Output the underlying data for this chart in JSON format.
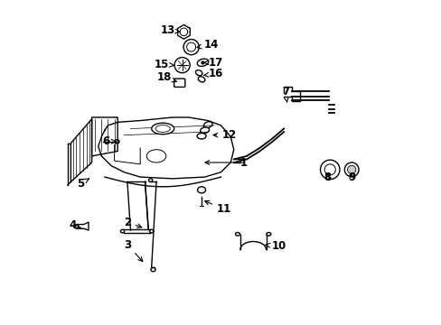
{
  "background_color": "#ffffff",
  "line_color": "#000000",
  "lw": 1.0,
  "labels": [
    [
      1,
      0.57,
      0.5,
      0.44,
      0.5
    ],
    [
      2,
      0.21,
      0.315,
      0.265,
      0.295
    ],
    [
      3,
      0.21,
      0.245,
      0.265,
      0.185
    ],
    [
      4,
      0.04,
      0.305,
      0.075,
      0.295
    ],
    [
      5,
      0.065,
      0.435,
      0.1,
      0.455
    ],
    [
      6,
      0.145,
      0.565,
      0.185,
      0.565
    ],
    [
      7,
      0.7,
      0.72,
      0.705,
      0.685
    ],
    [
      8,
      0.83,
      0.455,
      0.835,
      0.475
    ],
    [
      9,
      0.905,
      0.455,
      0.905,
      0.475
    ],
    [
      10,
      0.68,
      0.24,
      0.635,
      0.245
    ],
    [
      11,
      0.51,
      0.355,
      0.44,
      0.385
    ],
    [
      12,
      0.525,
      0.585,
      0.465,
      0.585
    ],
    [
      13,
      0.335,
      0.91,
      0.375,
      0.905
    ],
    [
      14,
      0.47,
      0.865,
      0.415,
      0.855
    ],
    [
      15,
      0.315,
      0.805,
      0.365,
      0.8
    ],
    [
      16,
      0.485,
      0.775,
      0.445,
      0.77
    ],
    [
      17,
      0.485,
      0.81,
      0.445,
      0.81
    ],
    [
      18,
      0.325,
      0.765,
      0.365,
      0.75
    ]
  ]
}
